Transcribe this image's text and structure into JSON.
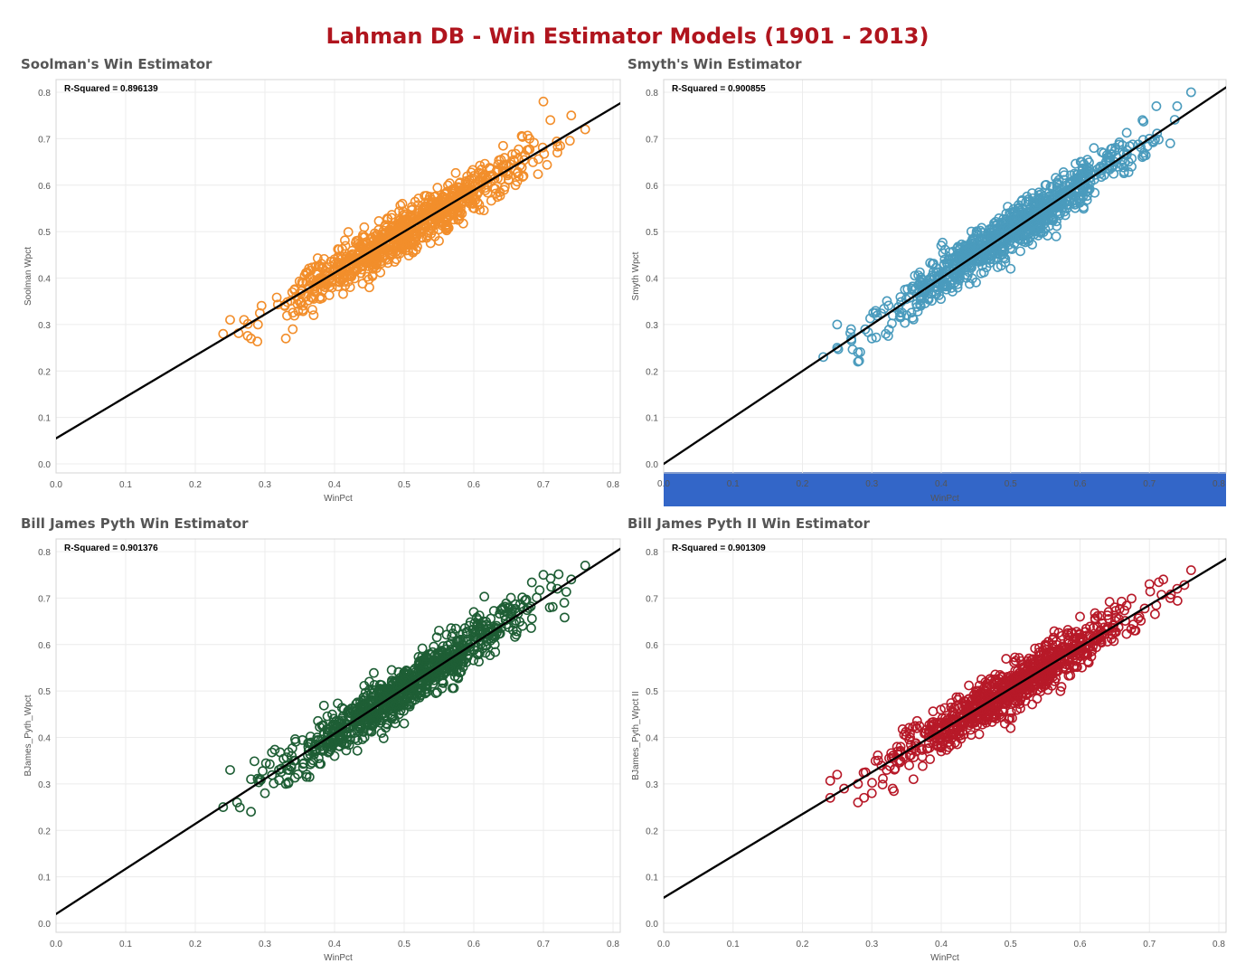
{
  "dashboard": {
    "title": "Lahman DB - Win Estimator Models (1901 - 2013)"
  },
  "chart_data": [
    {
      "type": "scatter",
      "title": "Soolman's Win Estimator",
      "xlabel": "WinPct",
      "ylabel": "Soolman Wpct",
      "annotation": "R-Squared = 0.896139",
      "color": "#f28e2b",
      "xlim": [
        0.0,
        0.8
      ],
      "ylim": [
        0.0,
        0.8
      ],
      "xticks": [
        "0.0",
        "0.1",
        "0.2",
        "0.3",
        "0.4",
        "0.5",
        "0.6",
        "0.7",
        "0.8"
      ],
      "yticks": [
        "0.0",
        "0.1",
        "0.2",
        "0.3",
        "0.4",
        "0.5",
        "0.6",
        "0.7",
        "0.8"
      ],
      "trend": {
        "intercept": 0.055,
        "slope": 0.89
      },
      "spread": 0.024,
      "points": [
        [
          0.24,
          0.28
        ],
        [
          0.25,
          0.31
        ],
        [
          0.27,
          0.31
        ],
        [
          0.28,
          0.27
        ],
        [
          0.29,
          0.3
        ],
        [
          0.33,
          0.27
        ],
        [
          0.34,
          0.29
        ],
        [
          0.37,
          0.32
        ],
        [
          0.39,
          0.41
        ],
        [
          0.45,
          0.38
        ],
        [
          0.55,
          0.48
        ],
        [
          0.6,
          0.62
        ],
        [
          0.65,
          0.64
        ],
        [
          0.68,
          0.7
        ],
        [
          0.7,
          0.78
        ],
        [
          0.71,
          0.74
        ],
        [
          0.74,
          0.75
        ],
        [
          0.76,
          0.72
        ],
        [
          0.72,
          0.67
        ],
        [
          0.66,
          0.6
        ]
      ],
      "grid": true
    },
    {
      "type": "scatter",
      "title": "Smyth's Win Estimator",
      "xlabel": "WinPct",
      "ylabel": "Smyth Wpct",
      "annotation": "R-Squared = 0.900855",
      "color": "#4a9bbd",
      "xlim": [
        0.0,
        0.8
      ],
      "ylim": [
        0.0,
        0.8
      ],
      "xticks": [
        "0.0",
        "0.1",
        "0.2",
        "0.3",
        "0.4",
        "0.5",
        "0.6",
        "0.7",
        "0.8"
      ],
      "yticks": [
        "0.0",
        "0.1",
        "0.2",
        "0.3",
        "0.4",
        "0.5",
        "0.6",
        "0.7",
        "0.8"
      ],
      "x_axis_highlight": true,
      "trend": {
        "intercept": 0.0,
        "slope": 1.0
      },
      "spread": 0.024,
      "points": [
        [
          0.23,
          0.23
        ],
        [
          0.25,
          0.3
        ],
        [
          0.25,
          0.25
        ],
        [
          0.27,
          0.29
        ],
        [
          0.28,
          0.22
        ],
        [
          0.28,
          0.24
        ],
        [
          0.3,
          0.27
        ],
        [
          0.32,
          0.28
        ],
        [
          0.35,
          0.32
        ],
        [
          0.4,
          0.47
        ],
        [
          0.5,
          0.42
        ],
        [
          0.55,
          0.6
        ],
        [
          0.62,
          0.68
        ],
        [
          0.65,
          0.65
        ],
        [
          0.7,
          0.7
        ],
        [
          0.71,
          0.77
        ],
        [
          0.74,
          0.77
        ],
        [
          0.76,
          0.8
        ],
        [
          0.73,
          0.69
        ],
        [
          0.69,
          0.74
        ]
      ],
      "grid": true
    },
    {
      "type": "scatter",
      "title": "Bill James Pyth Win Estimator",
      "xlabel": "WinPct",
      "ylabel": "BJames_Pyth_Wpct",
      "annotation": "R-Squared = 0.901376",
      "color": "#1e5e35",
      "xlim": [
        0.0,
        0.8
      ],
      "ylim": [
        0.0,
        0.8
      ],
      "xticks": [
        "0.0",
        "0.1",
        "0.2",
        "0.3",
        "0.4",
        "0.5",
        "0.6",
        "0.7",
        "0.8"
      ],
      "yticks": [
        "0.0",
        "0.1",
        "0.2",
        "0.3",
        "0.4",
        "0.5",
        "0.6",
        "0.7",
        "0.8"
      ],
      "trend": {
        "intercept": 0.02,
        "slope": 0.97
      },
      "spread": 0.026,
      "points": [
        [
          0.24,
          0.25
        ],
        [
          0.25,
          0.33
        ],
        [
          0.26,
          0.26
        ],
        [
          0.28,
          0.24
        ],
        [
          0.28,
          0.31
        ],
        [
          0.3,
          0.28
        ],
        [
          0.33,
          0.3
        ],
        [
          0.36,
          0.32
        ],
        [
          0.4,
          0.36
        ],
        [
          0.45,
          0.52
        ],
        [
          0.5,
          0.43
        ],
        [
          0.55,
          0.63
        ],
        [
          0.6,
          0.67
        ],
        [
          0.65,
          0.68
        ],
        [
          0.7,
          0.75
        ],
        [
          0.72,
          0.72
        ],
        [
          0.73,
          0.69
        ],
        [
          0.74,
          0.74
        ],
        [
          0.76,
          0.77
        ],
        [
          0.67,
          0.64
        ]
      ],
      "grid": true
    },
    {
      "type": "scatter",
      "title": "Bill James Pyth II Win Estimator",
      "xlabel": "WinPct",
      "ylabel": "BJames_Pyth_Wpct II",
      "annotation": "R-Squared = 0.901309",
      "color": "#b71928",
      "xlim": [
        0.0,
        0.8
      ],
      "ylim": [
        0.0,
        0.8
      ],
      "xticks": [
        "0.0",
        "0.1",
        "0.2",
        "0.3",
        "0.4",
        "0.5",
        "0.6",
        "0.7",
        "0.8"
      ],
      "yticks": [
        "0.0",
        "0.1",
        "0.2",
        "0.3",
        "0.4",
        "0.5",
        "0.6",
        "0.7",
        "0.8"
      ],
      "trend": {
        "intercept": 0.055,
        "slope": 0.9
      },
      "spread": 0.024,
      "points": [
        [
          0.24,
          0.27
        ],
        [
          0.25,
          0.32
        ],
        [
          0.26,
          0.29
        ],
        [
          0.28,
          0.26
        ],
        [
          0.28,
          0.3
        ],
        [
          0.3,
          0.28
        ],
        [
          0.33,
          0.29
        ],
        [
          0.36,
          0.31
        ],
        [
          0.4,
          0.37
        ],
        [
          0.45,
          0.5
        ],
        [
          0.5,
          0.42
        ],
        [
          0.55,
          0.6
        ],
        [
          0.6,
          0.66
        ],
        [
          0.65,
          0.68
        ],
        [
          0.7,
          0.73
        ],
        [
          0.72,
          0.74
        ],
        [
          0.73,
          0.7
        ],
        [
          0.74,
          0.72
        ],
        [
          0.76,
          0.76
        ],
        [
          0.68,
          0.63
        ]
      ],
      "grid": true
    }
  ]
}
